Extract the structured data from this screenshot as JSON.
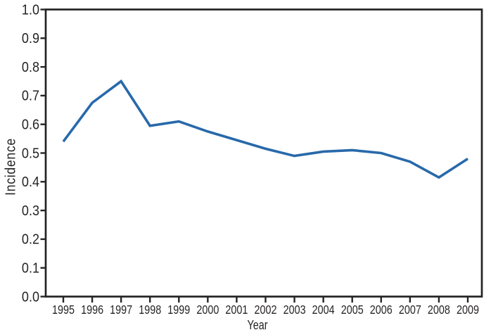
{
  "chart_data": {
    "type": "line",
    "title": "",
    "xlabel": "Year",
    "ylabel": "Incidence",
    "x": [
      1995,
      1996,
      1997,
      1998,
      1999,
      2000,
      2001,
      2002,
      2003,
      2004,
      2005,
      2006,
      2007,
      2008,
      2009
    ],
    "series": [
      {
        "name": "Incidence",
        "values": [
          0.54,
          0.675,
          0.75,
          0.595,
          0.61,
          0.575,
          0.545,
          0.515,
          0.49,
          0.505,
          0.51,
          0.5,
          0.47,
          0.415,
          0.48
        ]
      }
    ],
    "ylim": [
      0.0,
      1.0
    ],
    "ytick_step": 0.1,
    "ytick_labels": [
      "0.0",
      "0.1",
      "0.2",
      "0.3",
      "0.4",
      "0.5",
      "0.6",
      "0.7",
      "0.8",
      "0.9",
      "1.0"
    ],
    "grid": false,
    "legend_position": "none",
    "line_color": "#2869aa",
    "axis_color": "#262324",
    "background_color": "#ffffff"
  }
}
